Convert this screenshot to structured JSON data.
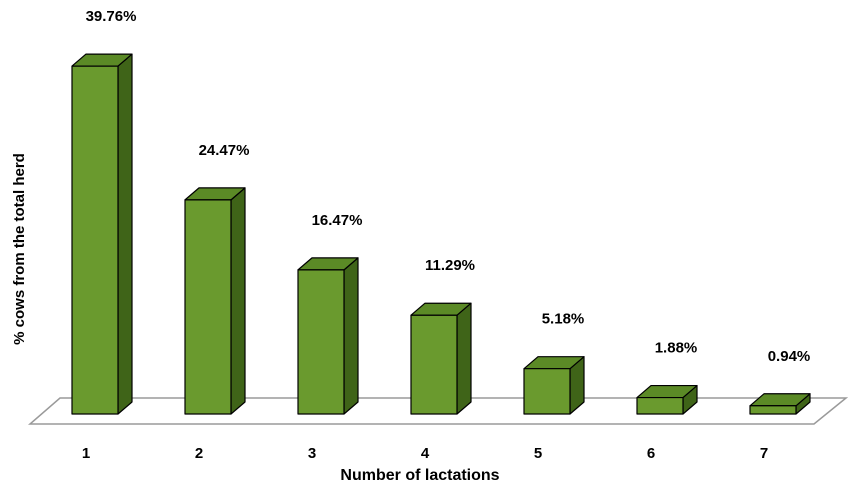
{
  "chart_data": {
    "type": "bar",
    "categories": [
      "1",
      "2",
      "3",
      "4",
      "5",
      "6",
      "7"
    ],
    "values": [
      39.76,
      24.47,
      16.47,
      11.29,
      5.18,
      1.88,
      0.94
    ],
    "data_labels": [
      "39.76%",
      "24.47%",
      "16.47%",
      "11.29%",
      "5.18%",
      "1.88%",
      "0.94%"
    ],
    "title": "",
    "xlabel": "Number of lactations",
    "ylabel": "% cows from the total herd",
    "ylim": [
      0,
      40
    ],
    "grid": false,
    "legend": "none",
    "style": "3d-column"
  },
  "colors": {
    "bar_front": "#6a9a2e",
    "bar_top": "#5b8a26",
    "bar_side": "#3f6418",
    "outline": "#000000",
    "floor": "#9a9a9a"
  }
}
